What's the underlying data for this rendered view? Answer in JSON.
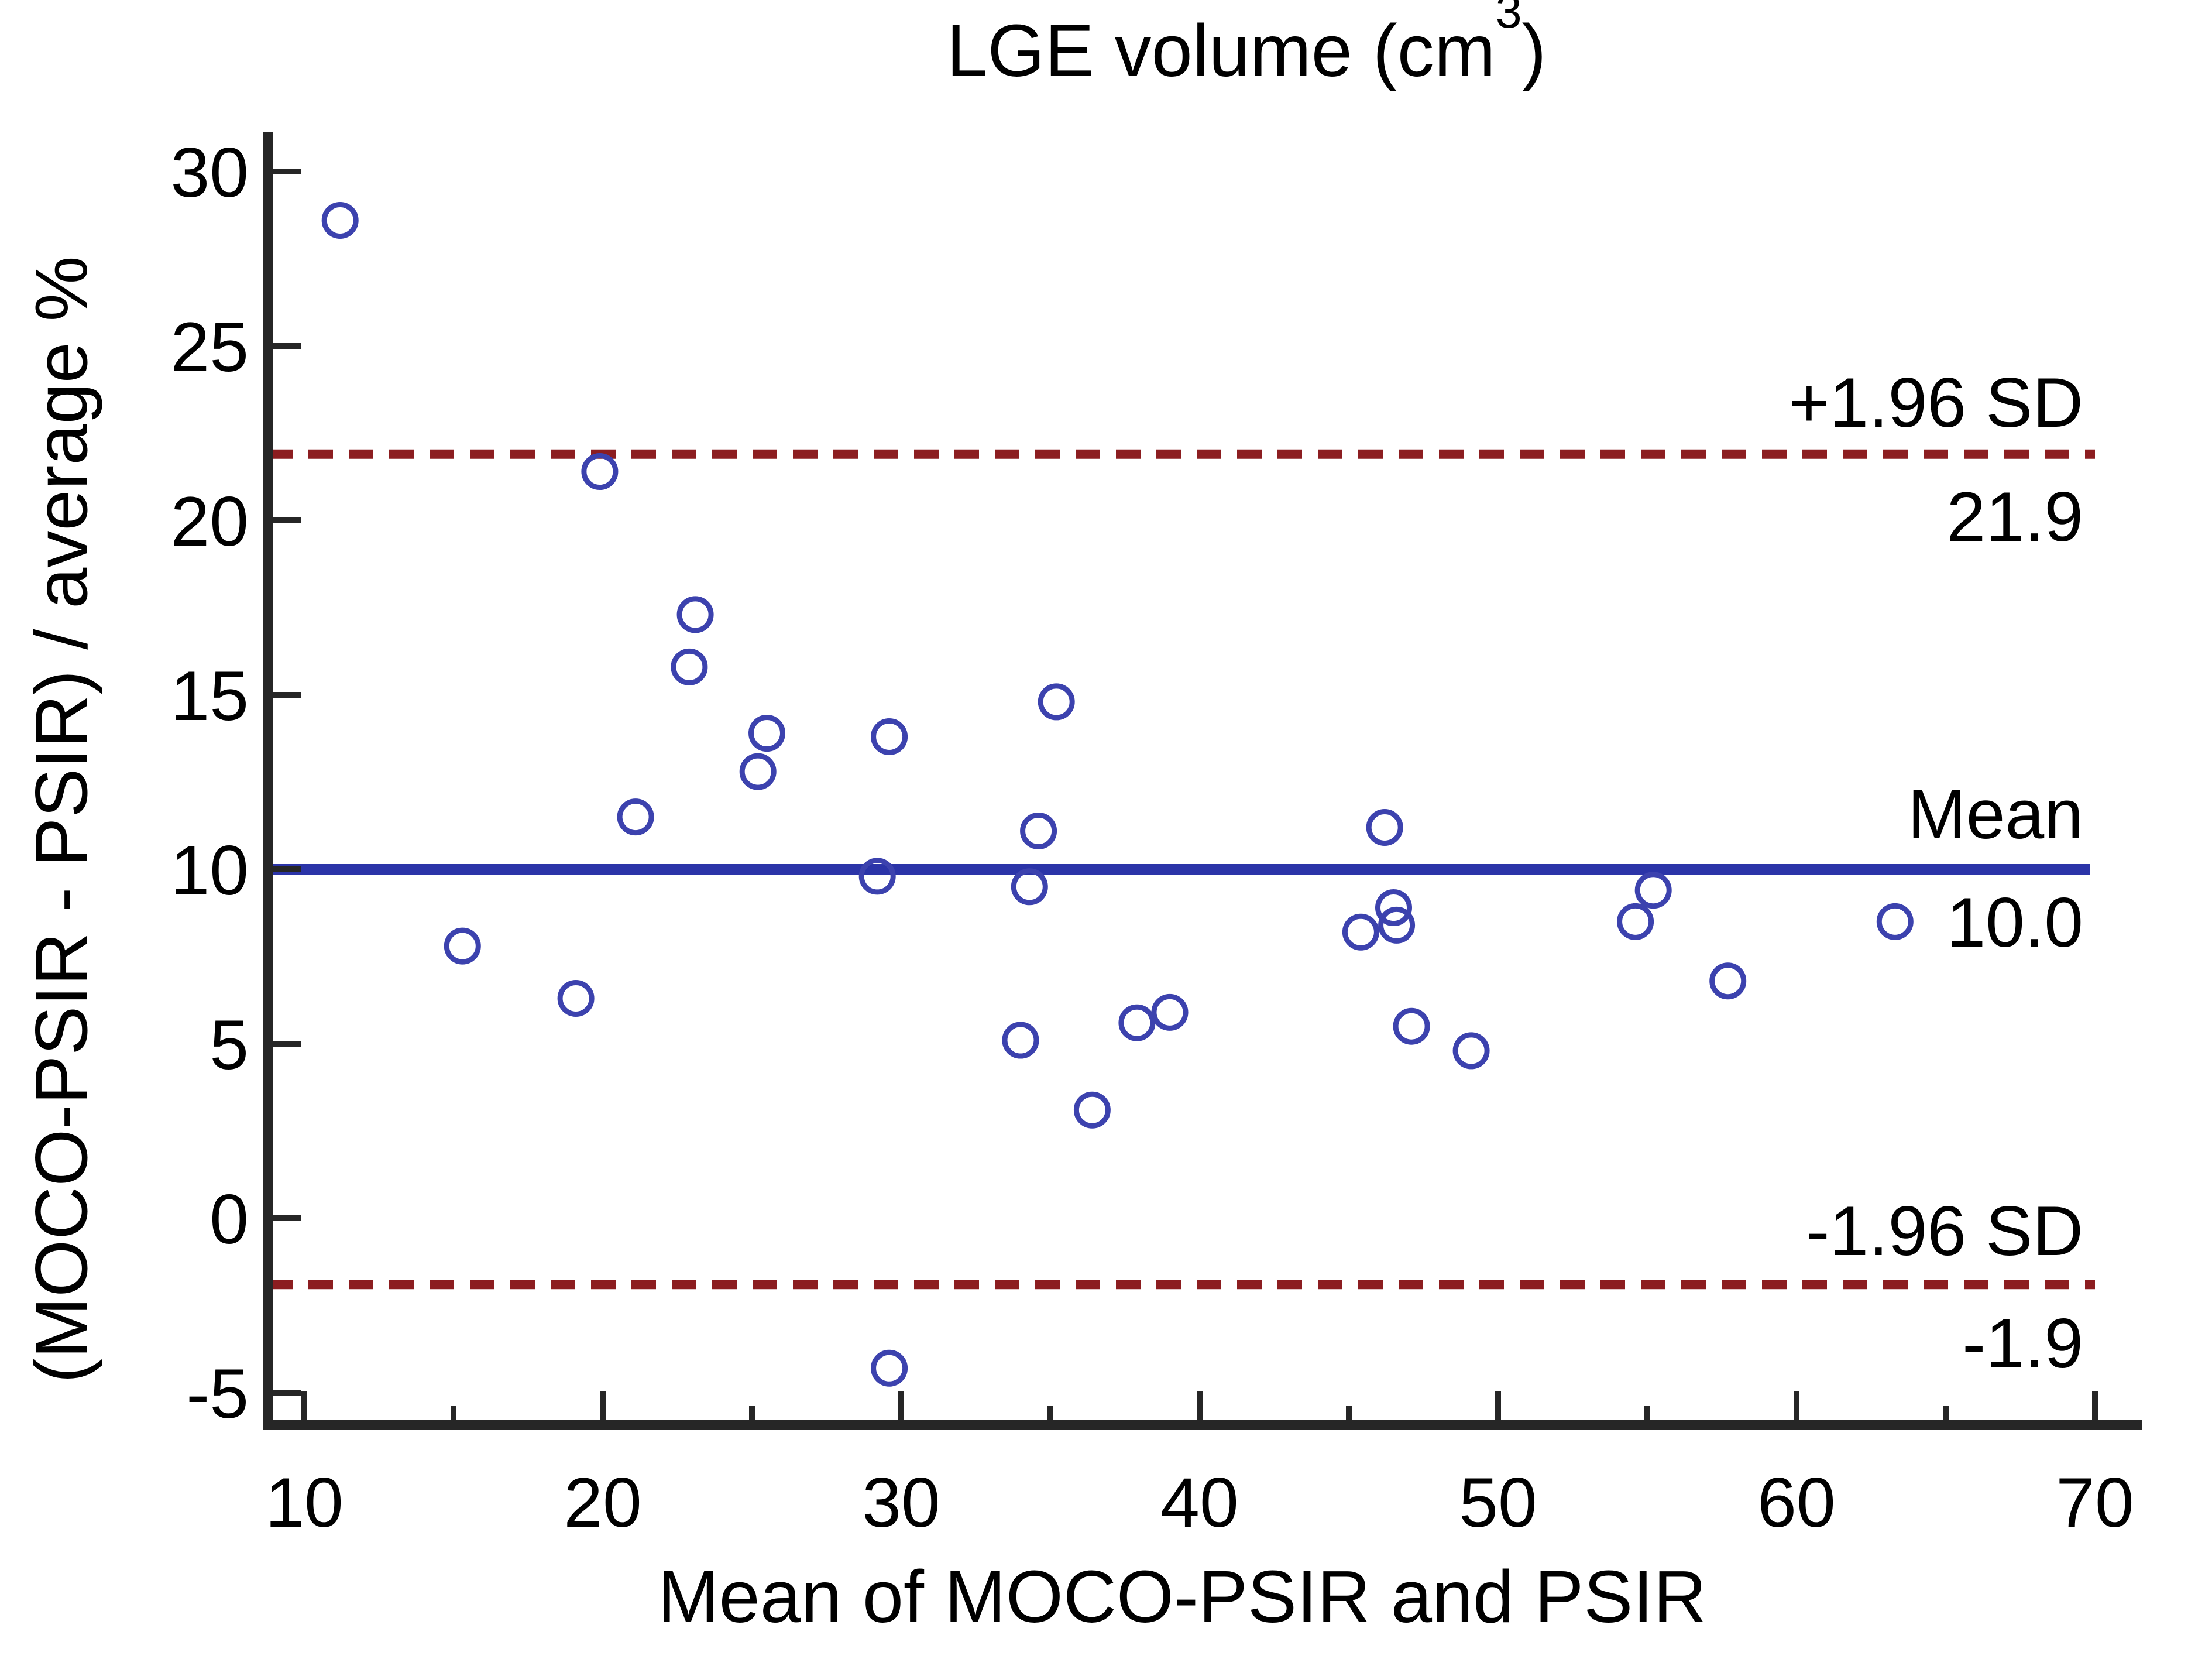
{
  "chart_data": {
    "type": "scatter",
    "title": {
      "prefix": "LGE volume (cm",
      "sup": "3",
      "suffix": ")"
    },
    "xlabel": "Mean of MOCO-PSIR and PSIR",
    "ylabel": "(MOCO-PSIR - PSIR) / average %",
    "xlim": [
      10,
      70
    ],
    "ylim": [
      -5,
      30
    ],
    "grid": false,
    "legend": "none",
    "marker_style": "open-circle",
    "x_ticks": [
      10,
      20,
      30,
      40,
      50,
      60,
      70
    ],
    "x_minor_ticks": [
      15,
      25,
      35,
      45,
      55,
      65
    ],
    "y_ticks": [
      30,
      25,
      20,
      15,
      10,
      5,
      0,
      -5
    ],
    "lines": {
      "upper": {
        "label": "+1.96 SD",
        "value_label": "21.9",
        "value": 21.9,
        "style": "dashed"
      },
      "mean": {
        "label": "Mean",
        "value_label": "10.0",
        "value": 10.0,
        "style": "solid"
      },
      "lower": {
        "label": "-1.96 SD",
        "value_label": "-1.9",
        "value": -1.9,
        "style": "dashed"
      }
    },
    "points": [
      [
        11.2,
        28.6
      ],
      [
        19.9,
        21.4
      ],
      [
        15.3,
        7.8
      ],
      [
        19.1,
        6.3
      ],
      [
        21.1,
        11.5
      ],
      [
        23.1,
        17.3
      ],
      [
        22.9,
        15.8
      ],
      [
        25.5,
        13.9
      ],
      [
        25.2,
        12.8
      ],
      [
        29.6,
        13.8
      ],
      [
        29.2,
        9.8
      ],
      [
        29.6,
        -4.3
      ],
      [
        34.0,
        5.1
      ],
      [
        34.3,
        9.5
      ],
      [
        34.6,
        11.1
      ],
      [
        35.2,
        14.8
      ],
      [
        36.4,
        3.1
      ],
      [
        37.9,
        5.6
      ],
      [
        39.0,
        5.9
      ],
      [
        45.4,
        8.2
      ],
      [
        46.2,
        11.2
      ],
      [
        46.5,
        8.9
      ],
      [
        46.6,
        8.4
      ],
      [
        47.1,
        5.5
      ],
      [
        49.1,
        4.8
      ],
      [
        54.6,
        8.5
      ],
      [
        55.2,
        9.4
      ],
      [
        57.7,
        6.8
      ],
      [
        63.3,
        8.5
      ]
    ],
    "colors": {
      "point": "#3C42AE",
      "mean_line": "#2B34A8",
      "loa_line": "#8C1D20",
      "axis": "#262626",
      "text": "#000000",
      "background": "#FFFFFF"
    }
  }
}
